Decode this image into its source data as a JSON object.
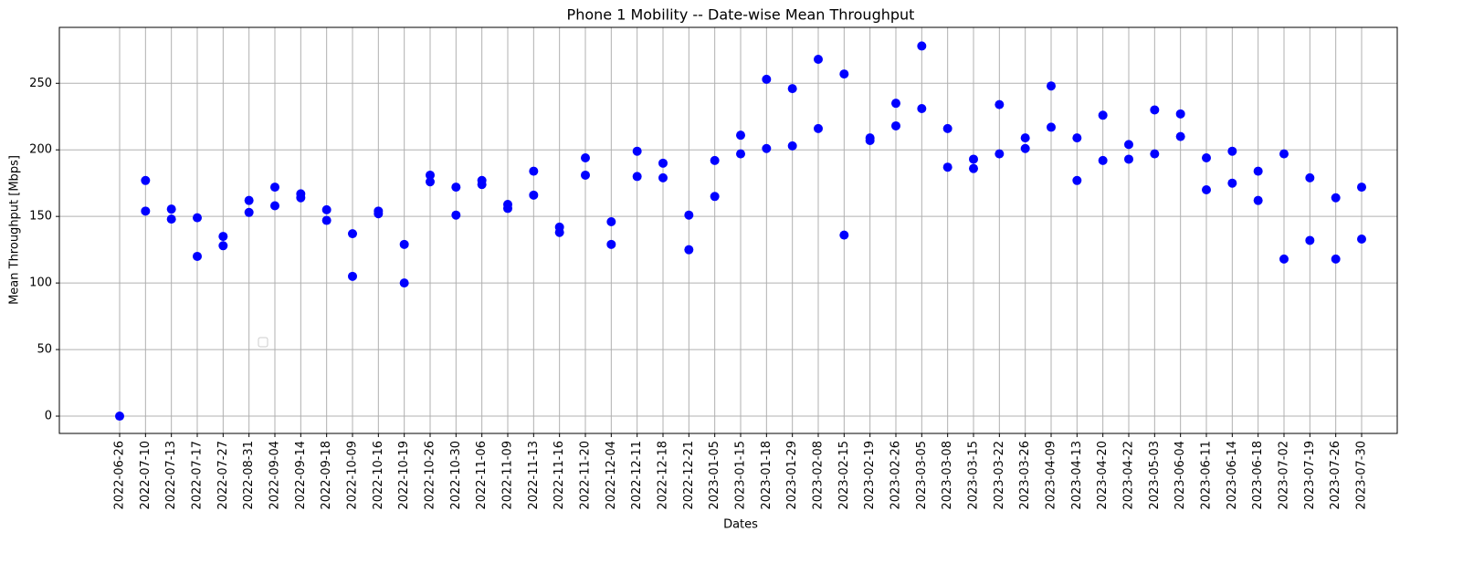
{
  "chart_data": {
    "type": "scatter",
    "title": "Phone 1 Mobility -- Date-wise Mean Throughput",
    "x_label": "Dates",
    "y_label": "Mean Throughput [Mbps]",
    "categories": [
      "2022-06-26",
      "2022-07-10",
      "2022-07-13",
      "2022-07-17",
      "2022-07-27",
      "2022-08-31",
      "2022-09-04",
      "2022-09-14",
      "2022-09-18",
      "2022-10-09",
      "2022-10-16",
      "2022-10-19",
      "2022-10-26",
      "2022-10-30",
      "2022-11-06",
      "2022-11-09",
      "2022-11-13",
      "2022-11-16",
      "2022-11-20",
      "2022-12-04",
      "2022-12-11",
      "2022-12-18",
      "2022-12-21",
      "2023-01-05",
      "2023-01-15",
      "2023-01-18",
      "2023-01-29",
      "2023-02-08",
      "2023-02-15",
      "2023-02-19",
      "2023-02-26",
      "2023-03-05",
      "2023-03-08",
      "2023-03-15",
      "2023-03-22",
      "2023-03-26",
      "2023-04-09",
      "2023-04-13",
      "2023-04-20",
      "2023-04-22",
      "2023-05-03",
      "2023-06-04",
      "2023-06-11",
      "2023-06-14",
      "2023-06-18",
      "2023-07-02",
      "2023-07-19",
      "2023-07-26",
      "2023-07-30"
    ],
    "series": [
      {
        "color": "#0000ff",
        "values": [
          0,
          177,
          155.5,
          149,
          135,
          162,
          172,
          167,
          155,
          137,
          154,
          129,
          181,
          172,
          177,
          159,
          184,
          142,
          194,
          146,
          199,
          190,
          151,
          192,
          211,
          253,
          246,
          268,
          257,
          209,
          235,
          278,
          216,
          193,
          234,
          209,
          248,
          209,
          226,
          204,
          230,
          227,
          194,
          199,
          184,
          197,
          179,
          164,
          172
        ]
      },
      {
        "color": "#0000ff",
        "values": [
          null,
          154,
          148,
          120,
          128,
          153,
          158,
          164,
          147,
          105,
          152,
          100,
          176,
          151,
          174,
          156,
          166,
          138,
          181,
          129,
          180,
          179,
          125,
          165,
          197,
          201,
          203,
          216,
          136,
          207,
          218,
          231,
          187,
          186,
          197,
          201,
          217,
          177,
          192,
          193,
          197,
          210,
          170,
          175,
          162,
          118,
          132,
          118,
          133
        ]
      }
    ],
    "ylim": [
      -13,
      292
    ],
    "yticks": [
      0,
      50,
      100,
      150,
      200,
      250
    ],
    "grid": true
  }
}
